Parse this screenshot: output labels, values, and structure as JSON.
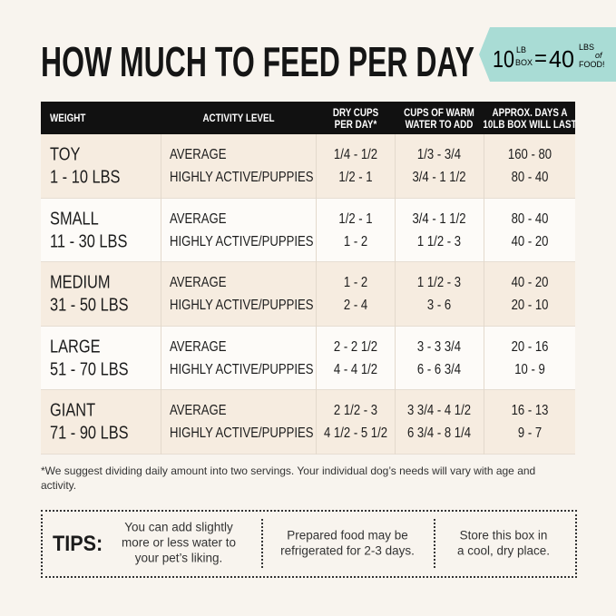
{
  "header": {
    "title": "HOW MUCH TO FEED PER DAY"
  },
  "badge": {
    "left_num": "10",
    "left_unit": [
      "LB",
      "BOX"
    ],
    "equals": "=",
    "right_num": "40",
    "right_unit": [
      "LBS",
      "of",
      "FOOD!"
    ]
  },
  "table": {
    "columns": [
      [
        "WEIGHT"
      ],
      [
        "ACTIVITY LEVEL"
      ],
      [
        "DRY CUPS",
        "PER DAY*"
      ],
      [
        "CUPS OF WARM",
        "WATER TO ADD"
      ],
      [
        "APPROX. DAYS A",
        "10LB BOX WILL LAST"
      ]
    ],
    "rows": [
      {
        "size": "TOY",
        "range": "1 - 10 LBS",
        "activity": [
          "AVERAGE",
          "HIGHLY ACTIVE/PUPPIES"
        ],
        "dry": [
          "1/4 - 1/2",
          "1/2 - 1"
        ],
        "water": [
          "1/3 - 3/4",
          "3/4 - 1 1/2"
        ],
        "days": [
          "160 - 80",
          "80 - 40"
        ]
      },
      {
        "size": "SMALL",
        "range": "11 - 30 LBS",
        "activity": [
          "AVERAGE",
          "HIGHLY ACTIVE/PUPPIES"
        ],
        "dry": [
          "1/2 - 1",
          "1 - 2"
        ],
        "water": [
          "3/4 - 1 1/2",
          "1 1/2 - 3"
        ],
        "days": [
          "80 - 40",
          "40 - 20"
        ]
      },
      {
        "size": "MEDIUM",
        "range": "31 - 50 LBS",
        "activity": [
          "AVERAGE",
          "HIGHLY ACTIVE/PUPPIES"
        ],
        "dry": [
          "1 - 2",
          "2 - 4"
        ],
        "water": [
          "1 1/2 - 3",
          "3 - 6"
        ],
        "days": [
          "40 - 20",
          "20 - 10"
        ]
      },
      {
        "size": "LARGE",
        "range": "51 - 70 LBS",
        "activity": [
          "AVERAGE",
          "HIGHLY ACTIVE/PUPPIES"
        ],
        "dry": [
          "2 - 2 1/2",
          "4 - 4 1/2"
        ],
        "water": [
          "3 - 3 3/4",
          "6 - 6 3/4"
        ],
        "days": [
          "20 - 16",
          "10 - 9"
        ]
      },
      {
        "size": "GIANT",
        "range": "71 - 90 LBS",
        "activity": [
          "AVERAGE",
          "HIGHLY ACTIVE/PUPPIES"
        ],
        "dry": [
          "2 1/2 - 3",
          "4 1/2 - 5 1/2"
        ],
        "water": [
          "3 3/4 - 4 1/2",
          "6 3/4 - 8 1/4"
        ],
        "days": [
          "16 - 13",
          "9 - 7"
        ]
      }
    ]
  },
  "footnote": "*We suggest dividing daily amount into two servings. Your individual dog’s needs will vary with age and activity.",
  "tips": {
    "label": "TIPS:",
    "items": [
      [
        "You can add slightly",
        "more or less water to",
        "your pet’s liking."
      ],
      [
        "Prepared food may be",
        "refrigerated for 2-3 days."
      ],
      [
        "Store this box in",
        "a cool, dry place."
      ]
    ]
  }
}
